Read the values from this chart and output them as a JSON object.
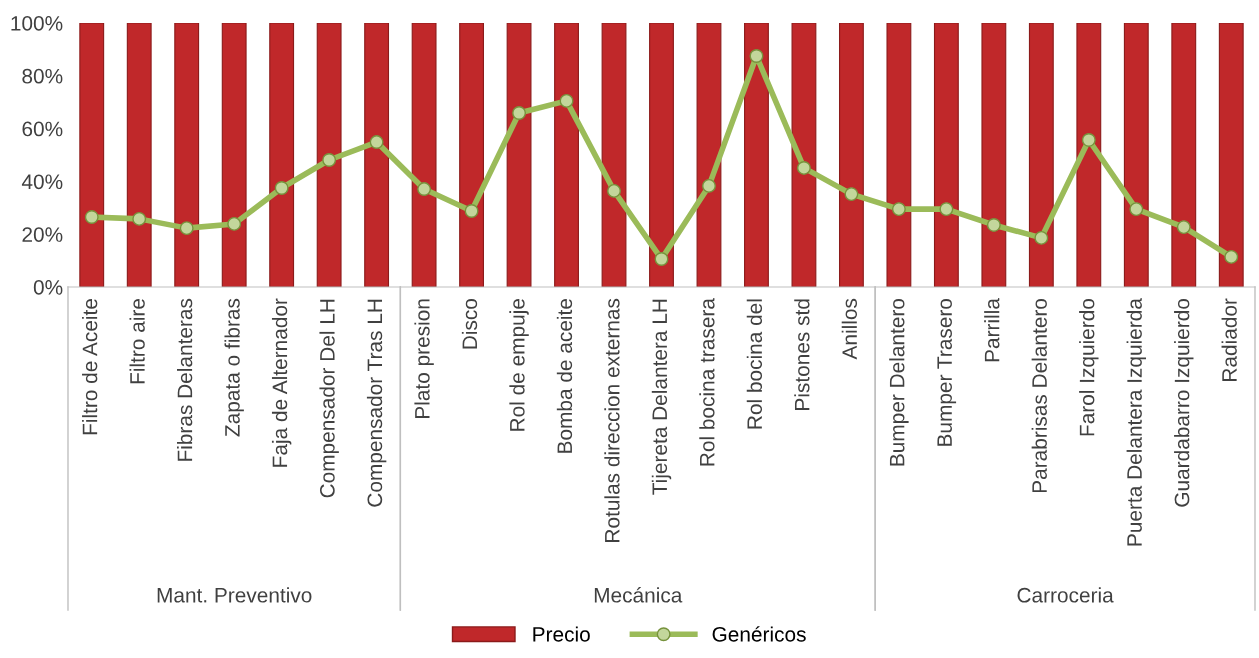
{
  "chart_data": {
    "type": "bar",
    "categories": [
      "Filtro de Aceite",
      "Filtro aire",
      "Fibras Delanteras",
      "Zapata o fibras",
      "Faja de Alternador",
      "Compensador Del LH",
      "Compensador Tras LH",
      "Plato presion",
      "Disco",
      "Rol de empuje",
      "Bomba de aceite",
      "Rotulas direccion externas",
      "Tijereta Delantera LH",
      "Rol bocina trasera",
      "Rol bocina del",
      "Pistones std",
      "Anillos",
      "Bumper Delantero",
      "Bumper Trasero",
      "Parrilla",
      "Parabrisas Delantero",
      "Farol Izquierdo",
      "Puerta Delantera Izquierda",
      "Guardabarro Izquierdo",
      "Radiador"
    ],
    "series": [
      {
        "name": "Precio",
        "color": "#c0282a",
        "values": [
          100,
          100,
          100,
          100,
          100,
          100,
          100,
          100,
          100,
          100,
          100,
          100,
          100,
          100,
          100,
          100,
          100,
          100,
          100,
          100,
          100,
          100,
          100,
          100,
          100
        ]
      },
      {
        "name": "Genéricos",
        "type": "line",
        "color": "#9bbb59",
        "marker": "circle",
        "values": [
          26.5,
          25.8,
          22.3,
          23.9,
          37.5,
          48.1,
          54.9,
          37.1,
          28.8,
          65.9,
          70.5,
          36.4,
          10.6,
          38.3,
          87.5,
          45.1,
          35.2,
          29.5,
          29.5,
          23.5,
          18.6,
          55.7,
          29.5,
          22.7,
          11.4
        ]
      }
    ],
    "ylim": [
      0,
      100
    ],
    "yticks": [
      {
        "value": 0,
        "label": "0%"
      },
      {
        "value": 20,
        "label": "20%"
      },
      {
        "value": 40,
        "label": "40%"
      },
      {
        "value": 60,
        "label": "60%"
      },
      {
        "value": 80,
        "label": "80%"
      },
      {
        "value": 100,
        "label": "100%"
      }
    ],
    "annotations": [
      "Mant. Preventivo",
      "Mecánica",
      "Carroceria"
    ],
    "grid": false,
    "legend": "bottom"
  }
}
